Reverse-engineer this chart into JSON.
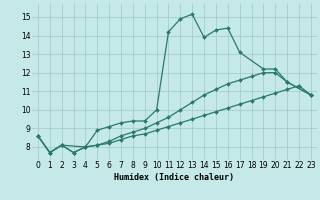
{
  "xlabel": "Humidex (Indice chaleur)",
  "background_color": "#c5e8e8",
  "grid_color": "#a0c8c8",
  "line_color": "#2a7a6a",
  "xlim": [
    -0.5,
    23.5
  ],
  "ylim": [
    7.3,
    15.7
  ],
  "yticks": [
    8,
    9,
    10,
    11,
    12,
    13,
    14,
    15
  ],
  "xticks": [
    0,
    1,
    2,
    3,
    4,
    5,
    6,
    7,
    8,
    9,
    10,
    11,
    12,
    13,
    14,
    15,
    16,
    17,
    18,
    19,
    20,
    21,
    22,
    23
  ],
  "series1_x": [
    0,
    1,
    2,
    4,
    5,
    6,
    7,
    8,
    9,
    10,
    11,
    12,
    13,
    14,
    15,
    16,
    17,
    19,
    20,
    21,
    23
  ],
  "series1_y": [
    8.6,
    7.7,
    8.1,
    8.0,
    8.9,
    9.1,
    9.3,
    9.4,
    9.4,
    10.0,
    14.2,
    14.9,
    15.15,
    13.9,
    14.3,
    14.4,
    13.1,
    12.2,
    12.2,
    11.5,
    10.8
  ],
  "series2_x": [
    0,
    1,
    2,
    3,
    4,
    5,
    6,
    7,
    8,
    9,
    10,
    11,
    12,
    13,
    14,
    15,
    16,
    17,
    18,
    19,
    20,
    21,
    22,
    23
  ],
  "series2_y": [
    8.6,
    7.7,
    8.1,
    7.7,
    8.0,
    8.1,
    8.2,
    8.4,
    8.6,
    8.7,
    8.9,
    9.1,
    9.3,
    9.5,
    9.7,
    9.9,
    10.1,
    10.3,
    10.5,
    10.7,
    10.9,
    11.1,
    11.3,
    10.8
  ],
  "series3_x": [
    0,
    1,
    2,
    3,
    4,
    5,
    6,
    7,
    8,
    9,
    10,
    11,
    12,
    13,
    14,
    15,
    16,
    17,
    18,
    19,
    20,
    21,
    23
  ],
  "series3_y": [
    8.6,
    7.7,
    8.1,
    7.7,
    8.0,
    8.1,
    8.3,
    8.6,
    8.8,
    9.0,
    9.3,
    9.6,
    10.0,
    10.4,
    10.8,
    11.1,
    11.4,
    11.6,
    11.8,
    12.0,
    12.0,
    11.5,
    10.8
  ]
}
